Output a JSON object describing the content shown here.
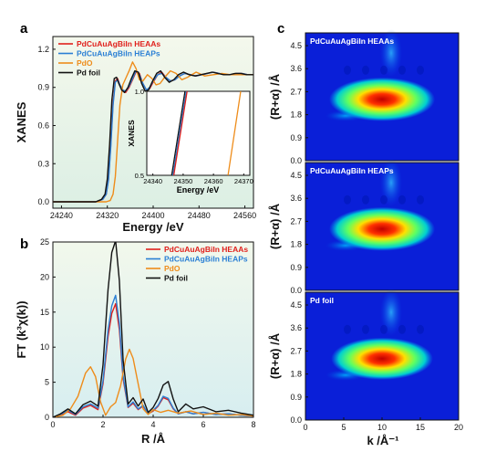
{
  "chart_data": [
    {
      "panel": "a",
      "type": "line",
      "xlabel": "Energy /eV",
      "ylabel": "XANES",
      "xlim": [
        24225,
        24575
      ],
      "ylim": [
        -0.05,
        1.3
      ],
      "xticks": [
        24240,
        24320,
        24400,
        24480,
        24560
      ],
      "yticks": [
        0.0,
        0.3,
        0.6,
        0.9,
        1.2
      ],
      "legend_position": "top-left",
      "series": [
        {
          "name": "PdCuAuAgBiIn HEAAs",
          "color": "#e0201c",
          "x": [
            24225,
            24300,
            24312,
            24318,
            24322,
            24326,
            24330,
            24334,
            24338,
            24342,
            24347,
            24352,
            24358,
            24364,
            24370,
            24376,
            24382,
            24388,
            24394,
            24400,
            24408,
            24415,
            24422,
            24430,
            24438,
            24446,
            24455,
            24465,
            24475,
            24485,
            24495,
            24505,
            24515,
            24525,
            24535,
            24545,
            24555,
            24565,
            24575
          ],
          "y": [
            0.0,
            0.0,
            0.02,
            0.06,
            0.18,
            0.45,
            0.78,
            0.95,
            0.97,
            0.92,
            0.88,
            0.86,
            0.9,
            0.96,
            1.02,
            1.01,
            0.93,
            0.88,
            0.89,
            0.94,
            1.0,
            1.02,
            0.98,
            0.95,
            0.96,
            0.99,
            1.01,
            1.0,
            0.99,
            1.0,
            1.01,
            1.02,
            1.01,
            1.0,
            1.0,
            1.01,
            1.01,
            1.0,
            1.0
          ]
        },
        {
          "name": "PdCuAuAgBiIn HEAPs",
          "color": "#2a7fd4",
          "x": [
            24225,
            24300,
            24312,
            24318,
            24322,
            24326,
            24330,
            24334,
            24338,
            24342,
            24347,
            24352,
            24358,
            24364,
            24370,
            24376,
            24382,
            24388,
            24394,
            24400,
            24408,
            24415,
            24422,
            24430,
            24438,
            24446,
            24455,
            24465,
            24475,
            24485,
            24495,
            24505,
            24515,
            24525,
            24535,
            24545,
            24555,
            24565,
            24575
          ],
          "y": [
            0.0,
            0.0,
            0.02,
            0.06,
            0.17,
            0.43,
            0.76,
            0.94,
            0.96,
            0.92,
            0.88,
            0.87,
            0.91,
            0.97,
            1.03,
            1.0,
            0.93,
            0.88,
            0.9,
            0.95,
            1.0,
            1.01,
            0.98,
            0.95,
            0.96,
            0.99,
            1.01,
            1.0,
            0.99,
            1.0,
            1.01,
            1.02,
            1.01,
            1.0,
            1.0,
            1.01,
            1.01,
            1.0,
            1.0
          ]
        },
        {
          "name": "PdO",
          "color": "#ee8c1a",
          "x": [
            24225,
            24300,
            24318,
            24325,
            24330,
            24334,
            24338,
            24342,
            24347,
            24352,
            24358,
            24364,
            24370,
            24376,
            24382,
            24390,
            24398,
            24405,
            24412,
            24420,
            24430,
            24440,
            24450,
            24460,
            24475,
            24490,
            24505,
            24520,
            24535,
            24550,
            24565,
            24575
          ],
          "y": [
            0.0,
            0.0,
            0.0,
            0.01,
            0.06,
            0.2,
            0.48,
            0.76,
            0.92,
            0.97,
            1.03,
            1.1,
            1.05,
            0.96,
            0.95,
            1.0,
            0.97,
            0.92,
            0.93,
            0.98,
            1.03,
            1.01,
            0.96,
            0.98,
            1.02,
            0.99,
            1.0,
            1.01,
            1.0,
            1.0,
            1.0,
            1.0
          ]
        },
        {
          "name": "Pd foil",
          "color": "#111111",
          "x": [
            24225,
            24300,
            24310,
            24316,
            24320,
            24324,
            24328,
            24332,
            24336,
            24340,
            24345,
            24350,
            24356,
            24362,
            24368,
            24374,
            24380,
            24386,
            24392,
            24398,
            24406,
            24413,
            24420,
            24428,
            24436,
            24444,
            24453,
            24463,
            24473,
            24483,
            24493,
            24503,
            24513,
            24523,
            24533,
            24543,
            24553,
            24563,
            24575
          ],
          "y": [
            0.0,
            0.0,
            0.02,
            0.06,
            0.18,
            0.45,
            0.8,
            0.97,
            0.98,
            0.93,
            0.88,
            0.86,
            0.9,
            0.97,
            1.03,
            1.02,
            0.93,
            0.87,
            0.88,
            0.94,
            1.01,
            1.03,
            0.98,
            0.94,
            0.96,
            1.0,
            1.02,
            1.0,
            0.99,
            1.0,
            1.01,
            1.02,
            1.01,
            1.0,
            1.0,
            1.01,
            1.01,
            1.0,
            1.0
          ]
        }
      ],
      "inset": {
        "xlabel": "Energy /eV",
        "ylabel": "XANES",
        "xlim": [
          24338,
          24372
        ],
        "ylim": [
          0.5,
          1.0
        ],
        "xticks": [
          24340,
          24350,
          24360,
          24370
        ],
        "yticks": [
          0.5,
          1.0
        ],
        "series": [
          {
            "name": "Pd foil",
            "color": "#111111",
            "x": [
              24346.2,
              24350.6
            ],
            "y": [
              0.5,
              1.0
            ]
          },
          {
            "name": "PdCuAuAgBiIn HEAPs",
            "color": "#2a7fd4",
            "x": [
              24346.6,
              24351.0
            ],
            "y": [
              0.5,
              1.0
            ]
          },
          {
            "name": "PdCuAuAgBiIn HEAAs",
            "color": "#e0201c",
            "x": [
              24346.9,
              24351.3
            ],
            "y": [
              0.5,
              1.0
            ]
          },
          {
            "name": "PdO",
            "color": "#ee8c1a",
            "x": [
              24364.8,
              24369.0
            ],
            "y": [
              0.5,
              1.0
            ]
          }
        ]
      }
    },
    {
      "panel": "b",
      "type": "line",
      "xlabel": "R /Å",
      "ylabel": "FT (k³χ(k))",
      "xlim": [
        0,
        8
      ],
      "ylim": [
        0,
        25
      ],
      "xticks": [
        0,
        2,
        4,
        6,
        8
      ],
      "yticks": [
        0,
        5,
        10,
        15,
        20,
        25
      ],
      "legend_position": "top-right",
      "series": [
        {
          "name": "PdCuAuAgBiIn HEAAs",
          "color": "#e0201c",
          "x": [
            0,
            0.3,
            0.6,
            0.9,
            1.2,
            1.5,
            1.8,
            2.0,
            2.2,
            2.35,
            2.5,
            2.65,
            2.8,
            3.0,
            3.2,
            3.4,
            3.6,
            3.8,
            4.0,
            4.2,
            4.4,
            4.6,
            4.8,
            5.0,
            5.3,
            5.6,
            6.0,
            6.5,
            7.0,
            7.5,
            8.0
          ],
          "y": [
            0,
            0.3,
            0.8,
            0.3,
            1.3,
            1.7,
            1.1,
            4.8,
            11.5,
            14.8,
            16.2,
            12.5,
            5.5,
            1.4,
            2.0,
            1.1,
            1.6,
            0.5,
            0.9,
            1.6,
            2.8,
            2.5,
            1.2,
            0.5,
            0.8,
            0.5,
            0.7,
            0.4,
            0.5,
            0.3,
            0.2
          ]
        },
        {
          "name": "PdCuAuAgBiIn HEAPs",
          "color": "#2a7fd4",
          "x": [
            0,
            0.3,
            0.6,
            0.9,
            1.2,
            1.5,
            1.8,
            2.0,
            2.2,
            2.35,
            2.5,
            2.65,
            2.8,
            3.0,
            3.2,
            3.4,
            3.6,
            3.8,
            4.0,
            4.2,
            4.4,
            4.6,
            4.8,
            5.0,
            5.3,
            5.6,
            6.0,
            6.5,
            7.0,
            7.5,
            8.0
          ],
          "y": [
            0,
            0.4,
            1.0,
            0.4,
            1.5,
            1.9,
            1.3,
            5.2,
            12.4,
            15.9,
            17.4,
            13.4,
            5.9,
            1.5,
            2.2,
            1.2,
            1.7,
            0.5,
            1.0,
            1.7,
            3.0,
            2.7,
            1.3,
            0.5,
            0.8,
            0.5,
            0.7,
            0.4,
            0.5,
            0.3,
            0.2
          ]
        },
        {
          "name": "PdO",
          "color": "#ee8c1a",
          "x": [
            0,
            0.4,
            0.7,
            1.0,
            1.3,
            1.5,
            1.7,
            1.9,
            2.1,
            2.3,
            2.5,
            2.7,
            2.9,
            3.05,
            3.2,
            3.4,
            3.6,
            3.8,
            4.0,
            4.3,
            4.6,
            5.0,
            5.5,
            6.0,
            6.5,
            7.0,
            7.5,
            8.0
          ],
          "y": [
            0,
            0.3,
            1.2,
            3.0,
            6.3,
            7.2,
            5.8,
            2.2,
            0.3,
            1.5,
            2.1,
            4.5,
            8.3,
            9.7,
            8.4,
            4.8,
            1.2,
            0.4,
            1.1,
            0.7,
            1.0,
            0.6,
            0.9,
            0.4,
            0.6,
            0.3,
            0.4,
            0.2
          ]
        },
        {
          "name": "Pd foil",
          "color": "#111111",
          "x": [
            0,
            0.3,
            0.6,
            0.9,
            1.2,
            1.5,
            1.8,
            2.0,
            2.2,
            2.35,
            2.5,
            2.65,
            2.8,
            3.0,
            3.2,
            3.4,
            3.6,
            3.8,
            4.0,
            4.2,
            4.4,
            4.6,
            4.8,
            5.0,
            5.3,
            5.6,
            6.0,
            6.5,
            7.0,
            7.5,
            8.0
          ],
          "y": [
            0,
            0.5,
            1.2,
            0.5,
            1.8,
            2.3,
            1.6,
            7.5,
            18.2,
            23.5,
            25.2,
            19.5,
            8.2,
            1.9,
            2.8,
            1.6,
            2.6,
            0.7,
            1.4,
            2.7,
            4.6,
            5.1,
            2.6,
            0.8,
            1.9,
            1.2,
            1.5,
            0.8,
            1.0,
            0.6,
            0.3
          ]
        }
      ]
    },
    {
      "panel": "c",
      "type": "heatmap",
      "xlabel": "k /Å⁻¹",
      "ylabel": "(R+α) /Å",
      "xlim": [
        0,
        20
      ],
      "xticks": [
        0,
        5,
        10,
        15,
        20
      ],
      "ylim": [
        0,
        5
      ],
      "yticks": [
        0.0,
        0.9,
        1.8,
        2.7,
        3.6,
        4.5
      ],
      "subplots": [
        {
          "label": "PdCuAuAgBiIn HEAAs",
          "peak_k": 10,
          "peak_R": 2.4,
          "peak_intensity": 1.0
        },
        {
          "label": "PdCuAuAgBiIn HEAPs",
          "peak_k": 10,
          "peak_R": 2.4,
          "peak_intensity": 1.0
        },
        {
          "label": "Pd foil",
          "peak_k": 10,
          "peak_R": 2.4,
          "peak_intensity": 0.85
        }
      ]
    }
  ],
  "panel_letters": {
    "a": "a",
    "b": "b",
    "c": "c"
  }
}
